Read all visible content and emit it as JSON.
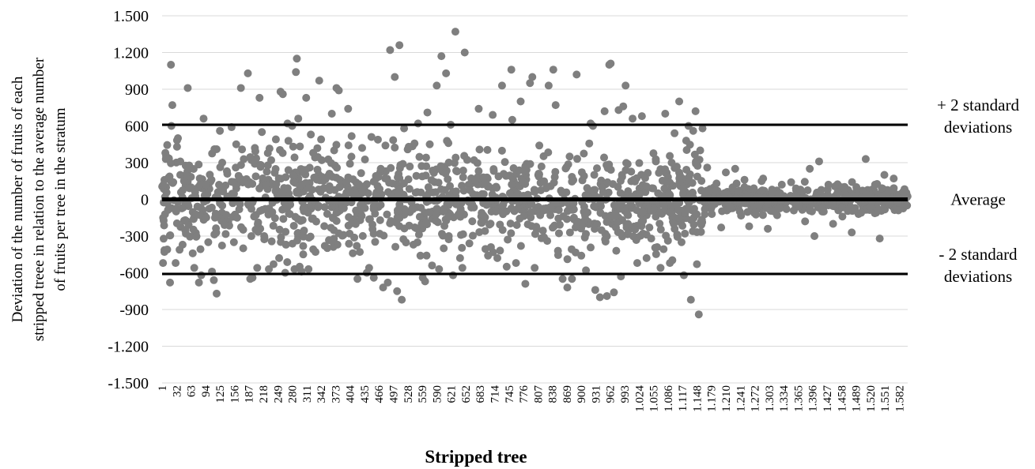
{
  "chart_data": {
    "type": "scatter",
    "title": "",
    "xlabel": "Stripped tree",
    "ylabel_lines": [
      "Deviation of the number of fruits of each",
      "stripped treee in relation to the average number",
      "of fruits per tree in the stratum"
    ],
    "ylim": [
      -1500,
      1500
    ],
    "y_ticks": [
      {
        "value": 1500,
        "label": "1.500"
      },
      {
        "value": 1200,
        "label": "1.200"
      },
      {
        "value": 900,
        "label": "900"
      },
      {
        "value": 600,
        "label": "600"
      },
      {
        "value": 300,
        "label": "300"
      },
      {
        "value": 0,
        "label": "0"
      },
      {
        "value": -300,
        "label": "-300"
      },
      {
        "value": -600,
        "label": "-600"
      },
      {
        "value": -900,
        "label": "-900"
      },
      {
        "value": -1200,
        "label": "-1.200"
      },
      {
        "value": -1500,
        "label": "-1.500"
      }
    ],
    "x_range": [
      1,
      1600
    ],
    "x_tick_labels": [
      "1",
      "32",
      "63",
      "94",
      "125",
      "156",
      "187",
      "218",
      "249",
      "280",
      "311",
      "342",
      "373",
      "404",
      "435",
      "466",
      "497",
      "528",
      "559",
      "590",
      "621",
      "652",
      "683",
      "714",
      "745",
      "776",
      "807",
      "838",
      "869",
      "900",
      "931",
      "962",
      "993",
      "1.024",
      "1.055",
      "1.086",
      "1.117",
      "1.148",
      "1.179",
      "1.210",
      "1.241",
      "1.272",
      "1.303",
      "1.334",
      "1.365",
      "1.396",
      "1.427",
      "1.458",
      "1.489",
      "1.520",
      "1.551",
      "1.582"
    ],
    "x_tick_values": [
      1,
      32,
      63,
      94,
      125,
      156,
      187,
      218,
      249,
      280,
      311,
      342,
      373,
      404,
      435,
      466,
      497,
      528,
      559,
      590,
      621,
      652,
      683,
      714,
      745,
      776,
      807,
      838,
      869,
      900,
      931,
      962,
      993,
      1024,
      1055,
      1086,
      1117,
      1148,
      1179,
      1210,
      1241,
      1272,
      1303,
      1334,
      1365,
      1396,
      1427,
      1458,
      1489,
      1520,
      1551,
      1582
    ],
    "grid": true,
    "point_color": "#7f7f7f",
    "reference_lines": [
      {
        "value": 610,
        "label_lines": [
          "+ 2 standard",
          "deviations"
        ]
      },
      {
        "value": 0,
        "label_lines": [
          "Average"
        ]
      },
      {
        "value": -610,
        "label_lines": [
          "- 2 standard",
          "deviations"
        ]
      }
    ],
    "points": [
      [
        3,
        -520
      ],
      [
        4,
        120
      ],
      [
        6,
        -430
      ],
      [
        8,
        380
      ],
      [
        9,
        330
      ],
      [
        12,
        -410
      ],
      [
        18,
        -680
      ],
      [
        20,
        1100
      ],
      [
        21,
        600
      ],
      [
        23,
        770
      ],
      [
        25,
        140
      ],
      [
        30,
        -520
      ],
      [
        33,
        430
      ],
      [
        35,
        500
      ],
      [
        40,
        200
      ],
      [
        45,
        -370
      ],
      [
        48,
        150
      ],
      [
        52,
        -280
      ],
      [
        56,
        910
      ],
      [
        60,
        90
      ],
      [
        70,
        -560
      ],
      [
        72,
        20
      ],
      [
        80,
        -680
      ],
      [
        85,
        -620
      ],
      [
        90,
        660
      ],
      [
        95,
        120
      ],
      [
        100,
        -350
      ],
      [
        108,
        -590
      ],
      [
        112,
        -660
      ],
      [
        118,
        -770
      ],
      [
        125,
        560
      ],
      [
        130,
        300
      ],
      [
        135,
        -210
      ],
      [
        140,
        230
      ],
      [
        150,
        590
      ],
      [
        155,
        -350
      ],
      [
        160,
        450
      ],
      [
        162,
        -150
      ],
      [
        170,
        910
      ],
      [
        175,
        -400
      ],
      [
        185,
        1030
      ],
      [
        190,
        -650
      ],
      [
        195,
        -640
      ],
      [
        200,
        420
      ],
      [
        205,
        -560
      ],
      [
        210,
        830
      ],
      [
        215,
        550
      ],
      [
        220,
        -300
      ],
      [
        230,
        -570
      ],
      [
        235,
        320
      ],
      [
        240,
        -530
      ],
      [
        245,
        490
      ],
      [
        252,
        -480
      ],
      [
        255,
        880
      ],
      [
        260,
        860
      ],
      [
        265,
        -600
      ],
      [
        270,
        620
      ],
      [
        275,
        -120
      ],
      [
        280,
        600
      ],
      [
        285,
        -570
      ],
      [
        288,
        1040
      ],
      [
        290,
        1150
      ],
      [
        293,
        660
      ],
      [
        296,
        -550
      ],
      [
        300,
        -590
      ],
      [
        305,
        240
      ],
      [
        310,
        830
      ],
      [
        315,
        -570
      ],
      [
        320,
        530
      ],
      [
        325,
        380
      ],
      [
        330,
        -430
      ],
      [
        338,
        970
      ],
      [
        342,
        490
      ],
      [
        350,
        -380
      ],
      [
        360,
        210
      ],
      [
        365,
        700
      ],
      [
        370,
        400
      ],
      [
        375,
        910
      ],
      [
        380,
        890
      ],
      [
        390,
        -290
      ],
      [
        400,
        740
      ],
      [
        410,
        -440
      ],
      [
        420,
        -650
      ],
      [
        425,
        -430
      ],
      [
        430,
        420
      ],
      [
        440,
        -600
      ],
      [
        445,
        -560
      ],
      [
        450,
        510
      ],
      [
        455,
        -640
      ],
      [
        470,
        250
      ],
      [
        475,
        -720
      ],
      [
        480,
        440
      ],
      [
        485,
        -680
      ],
      [
        490,
        1220
      ],
      [
        495,
        130
      ],
      [
        500,
        1000
      ],
      [
        505,
        -750
      ],
      [
        510,
        1260
      ],
      [
        512,
        280
      ],
      [
        515,
        -820
      ],
      [
        520,
        580
      ],
      [
        530,
        430
      ],
      [
        540,
        -370
      ],
      [
        550,
        620
      ],
      [
        555,
        -460
      ],
      [
        560,
        -640
      ],
      [
        565,
        -670
      ],
      [
        570,
        710
      ],
      [
        575,
        450
      ],
      [
        580,
        -540
      ],
      [
        590,
        930
      ],
      [
        595,
        -570
      ],
      [
        600,
        1170
      ],
      [
        605,
        -400
      ],
      [
        610,
        1030
      ],
      [
        615,
        460
      ],
      [
        620,
        610
      ],
      [
        625,
        -620
      ],
      [
        630,
        1370
      ],
      [
        640,
        -480
      ],
      [
        645,
        -560
      ],
      [
        650,
        1200
      ],
      [
        660,
        -360
      ],
      [
        670,
        320
      ],
      [
        680,
        740
      ],
      [
        690,
        180
      ],
      [
        700,
        -460
      ],
      [
        710,
        690
      ],
      [
        720,
        -480
      ],
      [
        730,
        930
      ],
      [
        740,
        -550
      ],
      [
        750,
        1060
      ],
      [
        752,
        650
      ],
      [
        760,
        -520
      ],
      [
        770,
        800
      ],
      [
        780,
        -690
      ],
      [
        790,
        950
      ],
      [
        795,
        1000
      ],
      [
        800,
        -560
      ],
      [
        810,
        440
      ],
      [
        820,
        -310
      ],
      [
        830,
        930
      ],
      [
        840,
        1060
      ],
      [
        845,
        770
      ],
      [
        850,
        -420
      ],
      [
        860,
        -650
      ],
      [
        870,
        -720
      ],
      [
        875,
        350
      ],
      [
        880,
        -650
      ],
      [
        890,
        1020
      ],
      [
        900,
        -460
      ],
      [
        910,
        -580
      ],
      [
        920,
        620
      ],
      [
        925,
        600
      ],
      [
        930,
        -740
      ],
      [
        940,
        -800
      ],
      [
        950,
        720
      ],
      [
        955,
        -790
      ],
      [
        960,
        1100
      ],
      [
        963,
        1110
      ],
      [
        970,
        -760
      ],
      [
        975,
        -420
      ],
      [
        980,
        730
      ],
      [
        985,
        -630
      ],
      [
        990,
        760
      ],
      [
        995,
        930
      ],
      [
        1000,
        -200
      ],
      [
        1010,
        660
      ],
      [
        1020,
        -520
      ],
      [
        1030,
        680
      ],
      [
        1040,
        -480
      ],
      [
        1050,
        -320
      ],
      [
        1060,
        310
      ],
      [
        1070,
        -560
      ],
      [
        1080,
        700
      ],
      [
        1090,
        -520
      ],
      [
        1100,
        540
      ],
      [
        1110,
        800
      ],
      [
        1115,
        -350
      ],
      [
        1120,
        -620
      ],
      [
        1125,
        480
      ],
      [
        1130,
        600
      ],
      [
        1135,
        -820
      ],
      [
        1140,
        560
      ],
      [
        1145,
        720
      ],
      [
        1148,
        -530
      ],
      [
        1152,
        -940
      ],
      [
        1155,
        400
      ],
      [
        1160,
        580
      ],
      [
        1165,
        -80
      ],
      [
        1170,
        260
      ],
      [
        1180,
        -120
      ],
      [
        1190,
        130
      ],
      [
        1200,
        -230
      ],
      [
        1210,
        220
      ],
      [
        1220,
        -60
      ],
      [
        1230,
        250
      ],
      [
        1240,
        -100
      ],
      [
        1250,
        160
      ],
      [
        1260,
        -220
      ],
      [
        1270,
        90
      ],
      [
        1280,
        -50
      ],
      [
        1290,
        170
      ],
      [
        1300,
        -240
      ],
      [
        1310,
        60
      ],
      [
        1320,
        -130
      ],
      [
        1330,
        120
      ],
      [
        1340,
        -80
      ],
      [
        1350,
        140
      ],
      [
        1360,
        -30
      ],
      [
        1370,
        80
      ],
      [
        1380,
        -180
      ],
      [
        1390,
        250
      ],
      [
        1400,
        -300
      ],
      [
        1410,
        310
      ],
      [
        1420,
        -100
      ],
      [
        1430,
        120
      ],
      [
        1440,
        -200
      ],
      [
        1450,
        60
      ],
      [
        1460,
        -140
      ],
      [
        1470,
        30
      ],
      [
        1480,
        -270
      ],
      [
        1490,
        100
      ],
      [
        1500,
        -110
      ],
      [
        1510,
        330
      ],
      [
        1520,
        -60
      ],
      [
        1530,
        120
      ],
      [
        1540,
        -320
      ],
      [
        1550,
        200
      ],
      [
        1560,
        -40
      ],
      [
        1570,
        170
      ],
      [
        1580,
        -90
      ],
      [
        1590,
        60
      ]
    ],
    "dense_clusters": [
      {
        "x_from": 1,
        "x_to": 1160,
        "y_spread": 420
      },
      {
        "x_from": 1160,
        "x_to": 1600,
        "y_spread": 110
      }
    ]
  }
}
